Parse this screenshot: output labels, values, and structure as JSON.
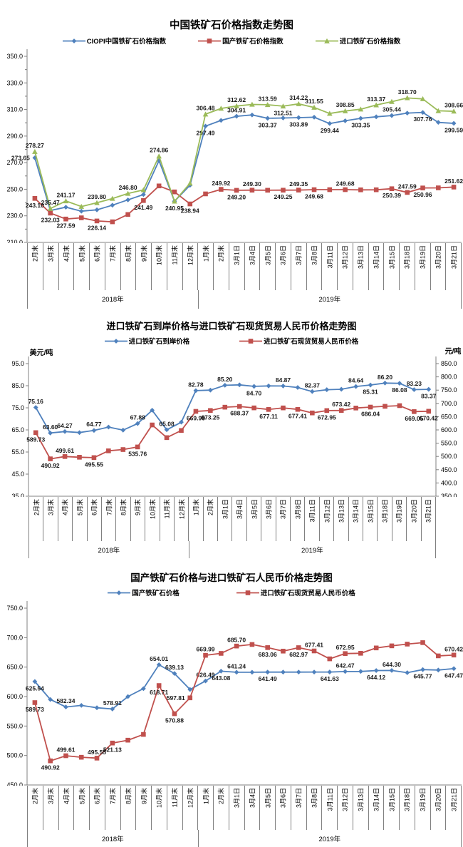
{
  "page": {
    "background": "#ffffff"
  },
  "colors": {
    "blue": "#4F81BD",
    "red": "#C0504D",
    "green": "#9BBB59",
    "axis": "#808080",
    "label_text": "#000000"
  },
  "chart_data": [
    {
      "type": "line",
      "title": "中国铁矿石价格指数走势图",
      "legend_position": "top",
      "grid": false,
      "categories": [
        "2月末",
        "3月末",
        "4月末",
        "5月末",
        "6月末",
        "7月末",
        "8月末",
        "9月末",
        "10月末",
        "11月末",
        "12月末",
        "1月末",
        "2月末",
        "3月1日",
        "3月4日",
        "3月5日",
        "3月6日",
        "3月7日",
        "3月8日",
        "3月11日",
        "3月12日",
        "3月13日",
        "3月14日",
        "3月15日",
        "3月18日",
        "3月19日",
        "3月20日",
        "3月21日"
      ],
      "category_groups": [
        {
          "label": "2018年",
          "count": 11
        },
        {
          "label": "2019年",
          "count": 17
        }
      ],
      "y_axis": {
        "min": 210,
        "max": 350,
        "step": 20,
        "labels": [
          "350.0",
          "330.0",
          "310.0",
          "290.0",
          "270.0",
          "250.0",
          "230.0",
          "210.0"
        ]
      },
      "series": [
        {
          "name": "CIOPI中国铁矿石价格指数",
          "color": "#4F81BD",
          "marker": "diamond",
          "values": [
            273.65,
            234.0,
            236.5,
            233.5,
            234.5,
            238.0,
            242.0,
            246.0,
            271.5,
            240.95,
            253.0,
            297.49,
            301.8,
            304.91,
            305.9,
            303.37,
            303.6,
            303.89,
            304.2,
            299.44,
            301.5,
            303.35,
            304.5,
            305.44,
            307.3,
            307.76,
            300.3,
            299.59
          ],
          "point_labels": {
            "0": [
              "273.65",
              "l"
            ],
            "11": [
              "297.49",
              "b"
            ],
            "13": [
              "304.91",
              "a"
            ],
            "15": [
              "303.37",
              "b"
            ],
            "17": [
              "303.89",
              "b"
            ],
            "19": [
              "299.44",
              "b"
            ],
            "21": [
              "303.35",
              "b"
            ],
            "23": [
              "305.44",
              "a"
            ],
            "25": [
              "307.76",
              "b"
            ],
            "27": [
              "299.59",
              "b"
            ]
          }
        },
        {
          "name": "国产铁矿石价格指数",
          "color": "#C0504D",
          "marker": "square",
          "values": [
            243.1,
            232.03,
            227.59,
            228.5,
            226.14,
            225.5,
            231.0,
            241.49,
            252.5,
            248.0,
            238.94,
            246.5,
            249.92,
            249.2,
            249.3,
            249.25,
            249.3,
            249.35,
            249.68,
            249.68,
            249.68,
            249.55,
            249.6,
            250.39,
            247.59,
            250.96,
            251.05,
            251.62
          ],
          "point_labels": {
            "0": [
              "243.10",
              "b"
            ],
            "1": [
              "232.03",
              "b"
            ],
            "2": [
              "227.59",
              "b"
            ],
            "4": [
              "226.14",
              "b"
            ],
            "7": [
              "241.49",
              "b"
            ],
            "10": [
              "238.94",
              "b"
            ],
            "12": [
              "249.92",
              "a"
            ],
            "13": [
              "249.20",
              "b"
            ],
            "14": [
              "249.30",
              "a"
            ],
            "16": [
              "249.25",
              "b"
            ],
            "17": [
              "249.35",
              "a"
            ],
            "18": [
              "249.68",
              "b"
            ],
            "20": [
              "249.68",
              "a"
            ],
            "23": [
              "250.39",
              "b"
            ],
            "24": [
              "247.59",
              "a"
            ],
            "25": [
              "250.96",
              "b"
            ],
            "27": [
              "251.62",
              "a"
            ]
          }
        },
        {
          "name": "进口铁矿石价格指数",
          "color": "#9BBB59",
          "marker": "triangle",
          "values": [
            278.27,
            235.47,
            241.17,
            237.0,
            239.8,
            243.0,
            246.8,
            249.5,
            274.86,
            240.95,
            254.5,
            306.48,
            310.8,
            312.62,
            313.8,
            313.59,
            312.51,
            314.22,
            311.55,
            307.0,
            308.85,
            310.2,
            313.37,
            315.9,
            318.7,
            318.0,
            309.0,
            308.66
          ],
          "point_labels": {
            "0": [
              "278.27",
              "a"
            ],
            "1": [
              "235.47",
              "a"
            ],
            "2": [
              "241.17",
              "a"
            ],
            "4": [
              "239.80",
              "a"
            ],
            "6": [
              "246.80",
              "a"
            ],
            "8": [
              "274.86",
              "a"
            ],
            "9": [
              "240.95",
              "b"
            ],
            "11": [
              "306.48",
              "a"
            ],
            "13": [
              "312.62",
              "a"
            ],
            "15": [
              "313.59",
              "a"
            ],
            "16": [
              "312.51",
              "b"
            ],
            "17": [
              "314.22",
              "a"
            ],
            "18": [
              "311.55",
              "a"
            ],
            "20": [
              "308.85",
              "a"
            ],
            "22": [
              "313.37",
              "a"
            ],
            "24": [
              "318.70",
              "a"
            ],
            "27": [
              "308.66",
              "a"
            ]
          }
        }
      ]
    },
    {
      "type": "line",
      "title": "进口铁矿石到岸价格与进口铁矿石现货贸易人民币价格走势图",
      "legend_position": "top",
      "grid": false,
      "categories": [
        "2月末",
        "3月末",
        "4月末",
        "5月末",
        "6月末",
        "7月末",
        "8月末",
        "9月末",
        "10月末",
        "11月末",
        "12月末",
        "1月末",
        "2月末",
        "3月1日",
        "3月4日",
        "3月5日",
        "3月6日",
        "3月7日",
        "3月8日",
        "3月11日",
        "3月12日",
        "3月13日",
        "3月14日",
        "3月15日",
        "3月18日",
        "3月19日",
        "3月20日",
        "3月21日"
      ],
      "category_groups": [
        {
          "label": "2018年",
          "count": 11
        },
        {
          "label": "2019年",
          "count": 17
        }
      ],
      "y_axis": {
        "min": 35,
        "max": 95,
        "step": 10,
        "title": "美元/吨",
        "labels": [
          "95.0",
          "85.0",
          "75.0",
          "65.0",
          "55.0",
          "45.0",
          "35.0"
        ]
      },
      "y2_axis": {
        "min": 350,
        "max": 850,
        "step": 50,
        "title": "元/吨",
        "labels": [
          "850.0",
          "800.0",
          "750.0",
          "700.0",
          "650.0",
          "600.0",
          "550.0",
          "500.0",
          "450.0",
          "400.0",
          "350.0"
        ]
      },
      "series": [
        {
          "name": "进口铁矿石到岸价格",
          "color": "#4F81BD",
          "marker": "diamond",
          "values": [
            75.16,
            63.6,
            64.27,
            63.8,
            64.77,
            66.3,
            64.9,
            67.88,
            73.9,
            65.08,
            68.5,
            82.78,
            83.0,
            85.2,
            85.4,
            84.7,
            84.9,
            84.87,
            84.2,
            82.37,
            83.2,
            83.4,
            84.64,
            85.31,
            86.2,
            86.08,
            83.23,
            83.37
          ],
          "point_labels": {
            "0": [
              "75.16",
              "a"
            ],
            "1": [
              "63.60",
              "a"
            ],
            "2": [
              "64.27",
              "a"
            ],
            "4": [
              "64.77",
              "a"
            ],
            "7": [
              "67.88",
              "a"
            ],
            "9": [
              "65.08",
              "a"
            ],
            "11": [
              "82.78",
              "a"
            ],
            "13": [
              "85.20",
              "a"
            ],
            "15": [
              "84.70",
              "b"
            ],
            "17": [
              "84.87",
              "a"
            ],
            "19": [
              "82.37",
              "a"
            ],
            "22": [
              "84.64",
              "a"
            ],
            "23": [
              "85.31",
              "b"
            ],
            "24": [
              "86.20",
              "a"
            ],
            "25": [
              "86.08",
              "b"
            ],
            "26": [
              "83.23",
              "a"
            ],
            "27": [
              "83.37",
              "b"
            ]
          }
        },
        {
          "name": "进口铁矿石现货贸易人民币价格",
          "color": "#C0504D",
          "marker": "square",
          "axis": "y2",
          "values": [
            589.73,
            490.92,
            499.61,
            497.0,
            495.55,
            521.13,
            526.0,
            535.76,
            618.71,
            570.88,
            597.81,
            669.99,
            673.25,
            685.7,
            688.37,
            683.06,
            677.11,
            682.97,
            677.41,
            664.0,
            672.95,
            673.42,
            682.5,
            686.04,
            689.0,
            691.5,
            669.05,
            670.42
          ],
          "point_labels": {
            "0": [
              "589.73",
              "b"
            ],
            "1": [
              "490.92",
              "b"
            ],
            "2": [
              "499.61",
              "a"
            ],
            "4": [
              "495.55",
              "b"
            ],
            "7": [
              "535.76",
              "b"
            ],
            "11": [
              "669.99",
              "b"
            ],
            "12": [
              "673.25",
              "b"
            ],
            "14": [
              "688.37",
              "b"
            ],
            "16": [
              "677.11",
              "b"
            ],
            "18": [
              "677.41",
              "b"
            ],
            "20": [
              "672.95",
              "b"
            ],
            "21": [
              "673.42",
              "a"
            ],
            "23": [
              "686.04",
              "b"
            ],
            "26": [
              "669.05",
              "b"
            ],
            "27": [
              "670.42",
              "b"
            ]
          }
        }
      ]
    },
    {
      "type": "line",
      "title": "国产铁矿石价格与进口铁矿石人民币价格走势图",
      "legend_position": "top",
      "grid": false,
      "categories": [
        "2月末",
        "3月末",
        "4月末",
        "5月末",
        "6月末",
        "7月末",
        "8月末",
        "9月末",
        "10月末",
        "11月末",
        "12月末",
        "1月末",
        "2月末",
        "3月1日",
        "3月4日",
        "3月5日",
        "3月6日",
        "3月7日",
        "3月8日",
        "3月11日",
        "3月12日",
        "3月13日",
        "3月14日",
        "3月15日",
        "3月18日",
        "3月19日",
        "3月20日",
        "3月21日"
      ],
      "category_groups": [
        {
          "label": "2018年",
          "count": 11
        },
        {
          "label": "2019年",
          "count": 17
        }
      ],
      "y_axis": {
        "min": 450,
        "max": 750,
        "step": 50,
        "labels": [
          "750.0",
          "700.0",
          "650.0",
          "600.0",
          "550.0",
          "500.0",
          "450.0"
        ]
      },
      "series": [
        {
          "name": "国产铁矿石价格",
          "color": "#4F81BD",
          "marker": "diamond",
          "values": [
            625.54,
            595.0,
            582.34,
            585.0,
            581.0,
            578.91,
            600.0,
            613.5,
            654.01,
            639.13,
            612.0,
            626.49,
            643.08,
            641.24,
            641.3,
            641.49,
            641.5,
            641.55,
            641.6,
            641.63,
            642.47,
            642.6,
            644.12,
            644.3,
            640.5,
            645.77,
            645.0,
            647.47
          ],
          "point_labels": {
            "0": [
              "625.54",
              "b"
            ],
            "2": [
              "582.34",
              "a"
            ],
            "5": [
              "578.91",
              "a"
            ],
            "8": [
              "654.01",
              "a"
            ],
            "9": [
              "639.13",
              "a"
            ],
            "11": [
              "626.49",
              "a"
            ],
            "12": [
              "643.08",
              "b"
            ],
            "13": [
              "641.24",
              "a"
            ],
            "15": [
              "641.49",
              "b"
            ],
            "19": [
              "641.63",
              "b"
            ],
            "20": [
              "642.47",
              "a"
            ],
            "22": [
              "644.12",
              "b"
            ],
            "23": [
              "644.30",
              "a"
            ],
            "25": [
              "645.77",
              "b"
            ],
            "27": [
              "647.47",
              "b"
            ]
          }
        },
        {
          "name": "进口铁矿石现货贸易人民币价格",
          "color": "#C0504D",
          "marker": "square",
          "values": [
            589.73,
            490.92,
            499.61,
            497.0,
            495.55,
            521.13,
            526.0,
            535.76,
            618.71,
            570.88,
            597.81,
            669.99,
            673.25,
            685.7,
            688.37,
            683.06,
            677.11,
            682.97,
            677.41,
            664.0,
            672.95,
            673.42,
            682.5,
            686.04,
            689.0,
            691.5,
            669.05,
            670.42
          ],
          "point_labels": {
            "0": [
              "589.73",
              "b"
            ],
            "1": [
              "490.92",
              "b"
            ],
            "2": [
              "499.61",
              "a"
            ],
            "4": [
              "495.55",
              "a"
            ],
            "5": [
              "521.13",
              "b"
            ],
            "8": [
              "618.71",
              "b"
            ],
            "9": [
              "570.88",
              "b"
            ],
            "10": [
              "597.81",
              "l"
            ],
            "11": [
              "669.99",
              "a"
            ],
            "13": [
              "685.70",
              "a"
            ],
            "15": [
              "683.06",
              "b"
            ],
            "17": [
              "682.97",
              "b"
            ],
            "18": [
              "677.41",
              "a"
            ],
            "20": [
              "672.95",
              "a"
            ],
            "27": [
              "670.42",
              "a"
            ]
          }
        }
      ]
    }
  ]
}
